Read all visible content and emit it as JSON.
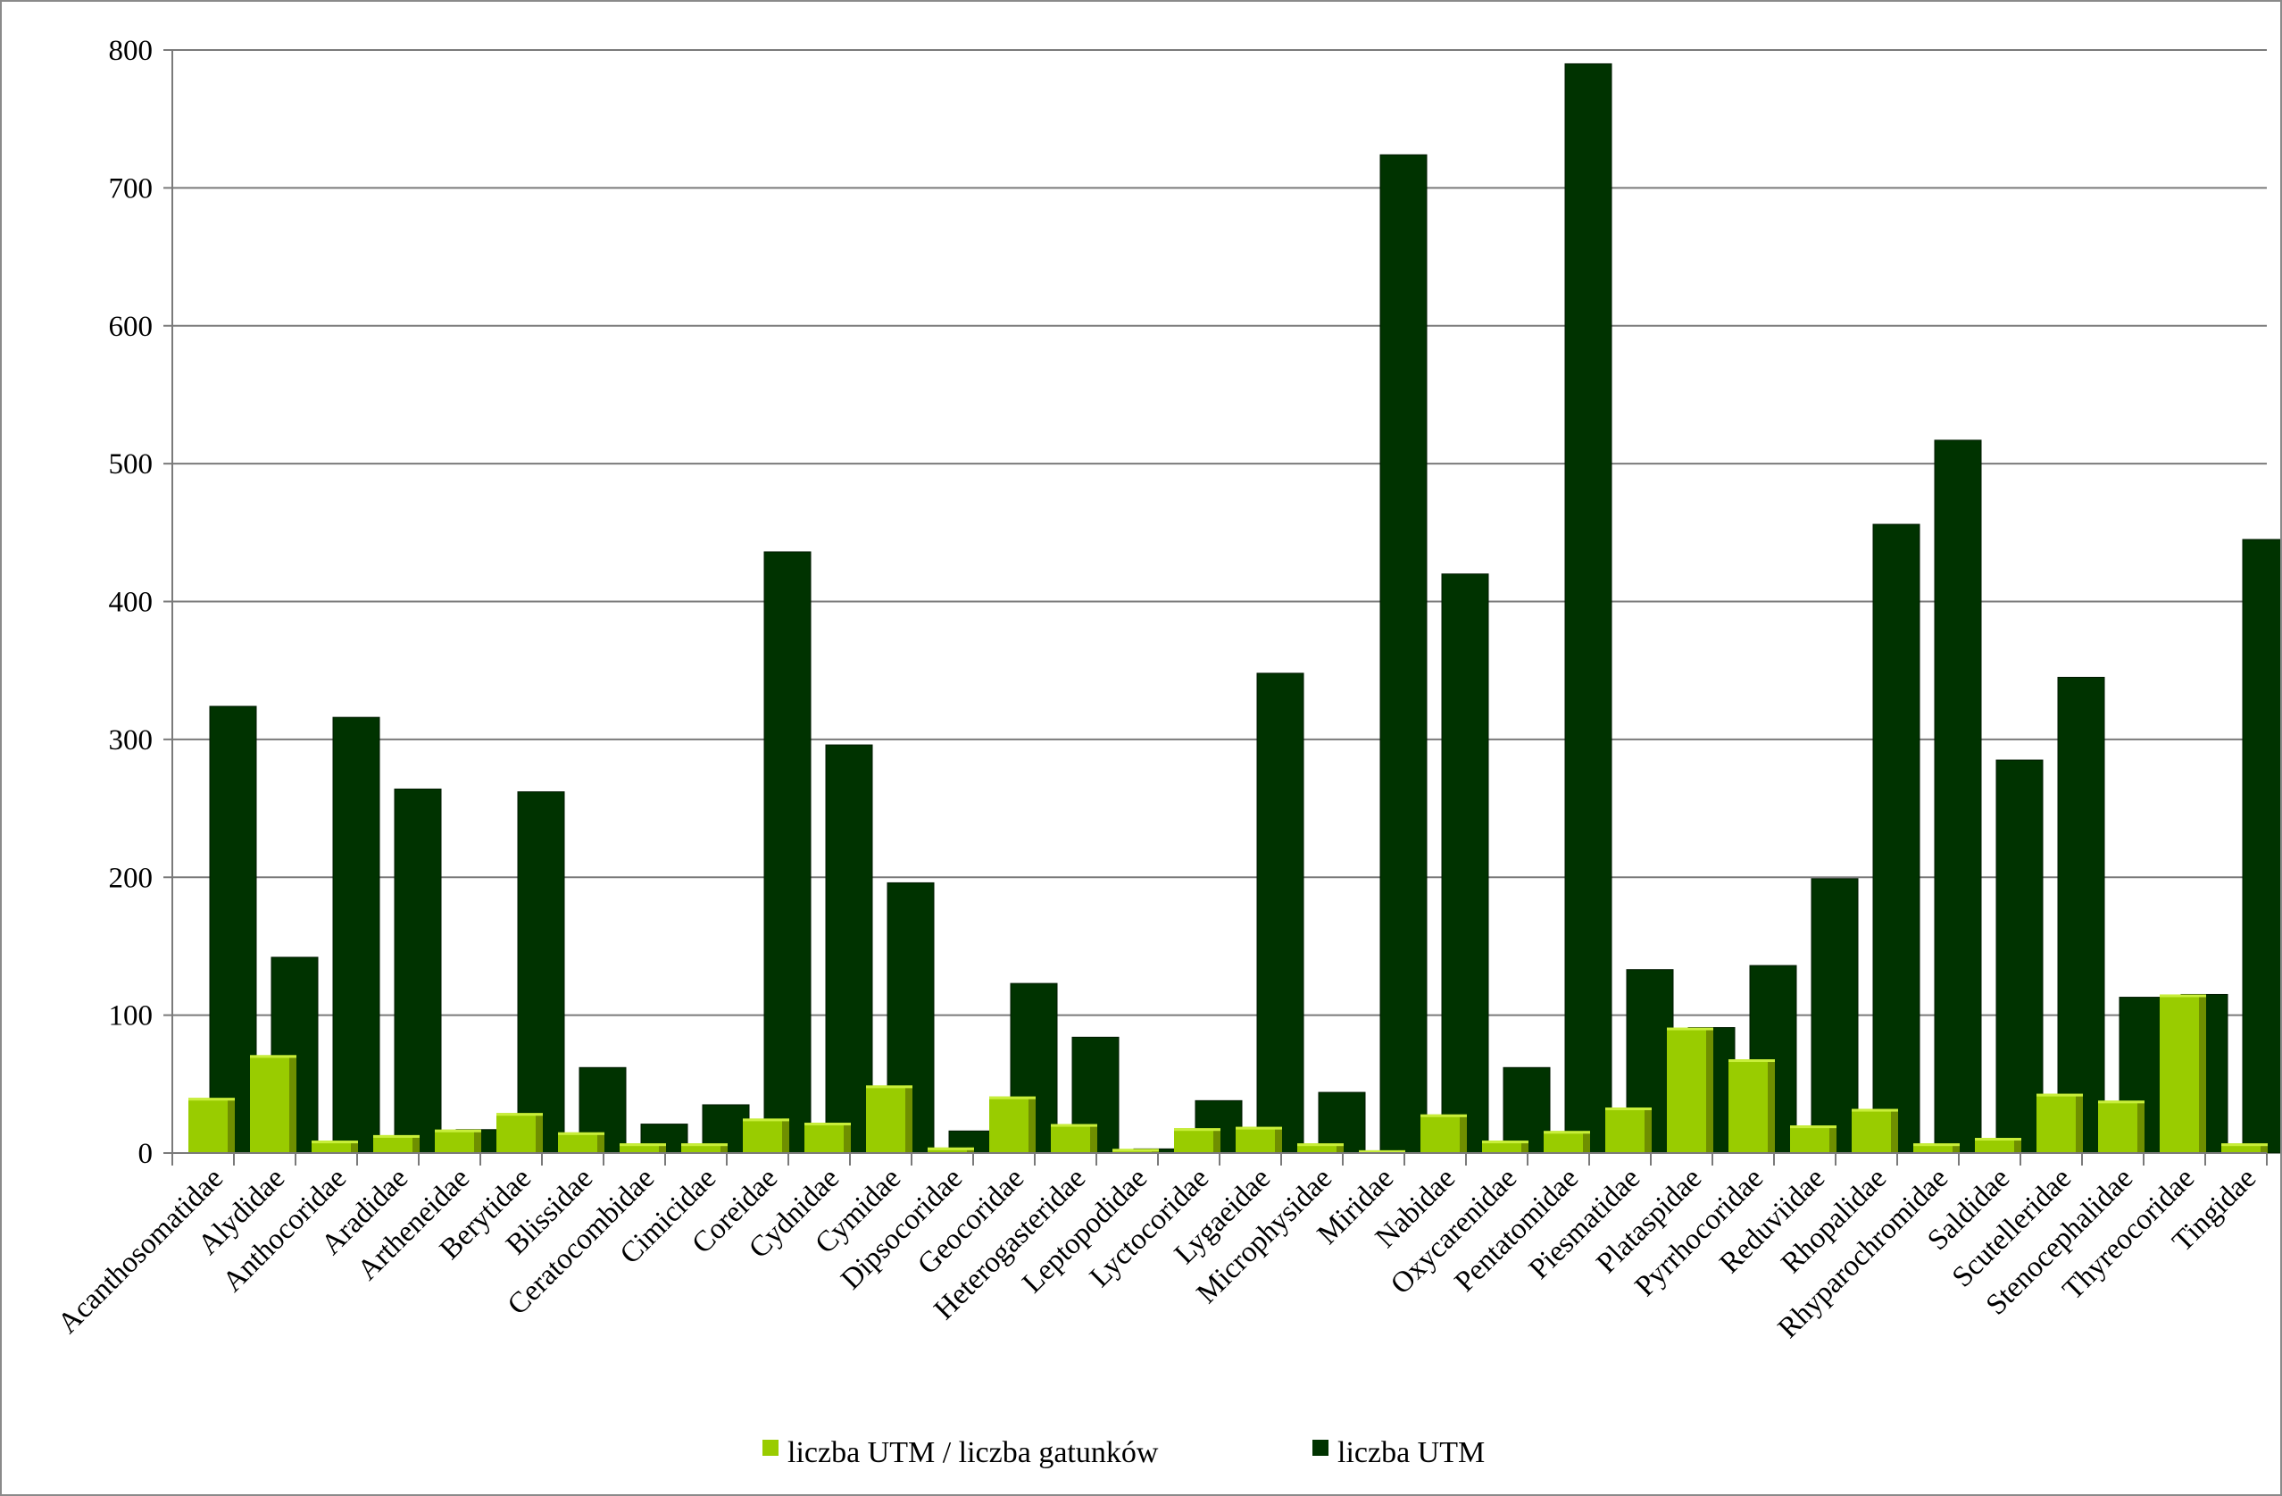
{
  "chart_data": {
    "type": "bar",
    "title": "",
    "xlabel": "",
    "ylabel": "",
    "ylim": [
      0,
      800
    ],
    "yticks": [
      0,
      100,
      200,
      300,
      400,
      500,
      600,
      700,
      800
    ],
    "grid": true,
    "legend_position": "bottom",
    "categories": [
      "Acanthosomatidae",
      "Alydidae",
      "Anthocoridae",
      "Aradidae",
      "Artheneidae",
      "Berytidae",
      "Blissidae",
      "Ceratocombidae",
      "Cimicidae",
      "Coreidae",
      "Cydnidae",
      "Cymidae",
      "Dipsocoridae",
      "Geocoridae",
      "Heterogasteridae",
      "Leptopodidae",
      "Lyctocoridae",
      "Lygaeidae",
      "Microphysidae",
      "Miridae",
      "Nabidae",
      "Oxycarenidae",
      "Pentatomidae",
      "Piesmatidae",
      "Plataspidae",
      "Pyrrhocoridae",
      "Reduviidae",
      "Rhopalidae",
      "Rhyparochromidae",
      "Saldidae",
      "Scutelleridae",
      "Stenocephalidae",
      "Thyreocoridae",
      "Tingidae"
    ],
    "series": [
      {
        "name": "liczba UTM / liczba gatunków",
        "color": "#99cc00",
        "values": [
          40,
          71,
          9,
          13,
          17,
          29,
          15,
          7,
          7,
          25,
          22,
          49,
          4,
          41,
          21,
          3,
          18,
          19,
          7,
          2,
          28,
          9,
          16,
          33,
          91,
          68,
          20,
          32,
          7,
          11,
          43,
          38,
          115,
          7
        ]
      },
      {
        "name": "liczba UTM",
        "color": "#003300",
        "values": [
          324,
          142,
          316,
          264,
          17,
          262,
          62,
          21,
          35,
          436,
          296,
          196,
          16,
          123,
          84,
          3,
          38,
          348,
          44,
          724,
          420,
          62,
          790,
          133,
          91,
          136,
          199,
          456,
          517,
          285,
          345,
          113,
          115,
          445
        ]
      }
    ]
  }
}
